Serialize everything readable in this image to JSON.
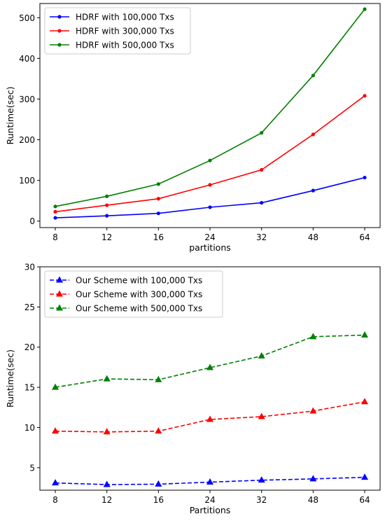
{
  "chart_data": [
    {
      "type": "line",
      "categories": [
        "8",
        "12",
        "16",
        "24",
        "32",
        "48",
        "64"
      ],
      "xlabel": "partitions",
      "ylabel": "Runtime(sec)",
      "ylim": [
        -16,
        535
      ],
      "yticks": [
        0,
        100,
        200,
        300,
        400,
        500
      ],
      "grid": false,
      "legend": "top-left",
      "series": [
        {
          "name": "HDRF with 100,000 Txs",
          "color": "#0000ff",
          "marker": "circle",
          "dash": "solid",
          "values": [
            8,
            13,
            19,
            34,
            45,
            75,
            107
          ]
        },
        {
          "name": "HDRF with 300,000 Txs",
          "color": "#ff0000",
          "marker": "circle",
          "dash": "solid",
          "values": [
            23,
            39,
            55,
            89,
            126,
            213,
            308
          ]
        },
        {
          "name": "HDRF with 500,000 Txs",
          "color": "#008000",
          "marker": "circle",
          "dash": "solid",
          "values": [
            36,
            61,
            91,
            149,
            217,
            358,
            521
          ]
        }
      ]
    },
    {
      "type": "line",
      "categories": [
        "8",
        "12",
        "16",
        "24",
        "32",
        "48",
        "64"
      ],
      "xlabel": "Partitions",
      "ylabel": "Runtime(sec)",
      "ylim": [
        2.2,
        30
      ],
      "yticks": [
        5,
        10,
        15,
        20,
        25,
        30
      ],
      "grid": false,
      "legend": "top-left",
      "series": [
        {
          "name": "Our Scheme with 100,000 Txs",
          "color": "#0000ff",
          "marker": "triangle",
          "dash": "dashed",
          "values": [
            3.1,
            2.9,
            2.95,
            3.2,
            3.45,
            3.6,
            3.8
          ]
        },
        {
          "name": "Our Scheme with 300,000 Txs",
          "color": "#ff0000",
          "marker": "triangle",
          "dash": "dashed",
          "values": [
            9.55,
            9.45,
            9.55,
            11.0,
            11.35,
            12.05,
            13.2
          ]
        },
        {
          "name": "Our Scheme with 500,000 Txs",
          "color": "#008000",
          "marker": "triangle",
          "dash": "dashed",
          "values": [
            15.0,
            16.05,
            15.95,
            17.45,
            18.9,
            21.3,
            21.5
          ]
        }
      ]
    }
  ]
}
